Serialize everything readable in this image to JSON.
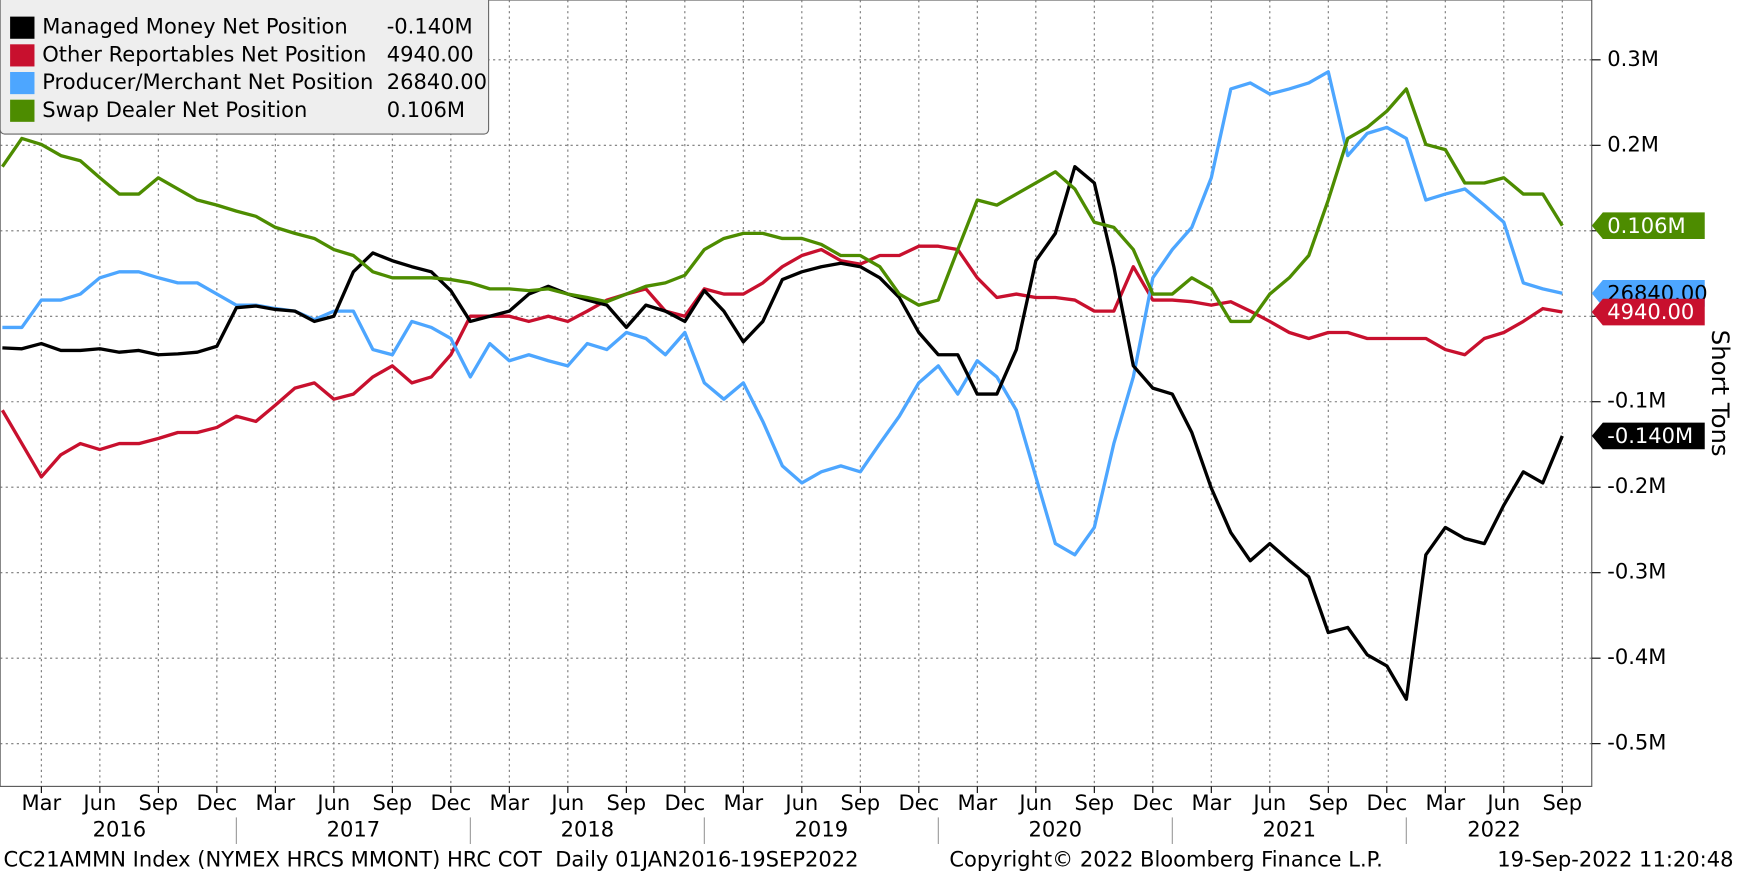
{
  "chart_data": {
    "type": "line",
    "y_axis_label": "Short Tons",
    "footer_left": "CC21AMMN Index (NYMEX HRCS MMONT) HRC COT  Daily 01JAN2016-19SEP2022",
    "footer_center": "Copyright© 2022 Bloomberg Finance L.P.",
    "footer_right": "19-Sep-2022 11:20:48",
    "x": [
      "2016-01",
      "2016-02",
      "2016-03",
      "2016-04",
      "2016-05",
      "2016-06",
      "2016-07",
      "2016-08",
      "2016-09",
      "2016-10",
      "2016-11",
      "2016-12",
      "2017-01",
      "2017-02",
      "2017-03",
      "2017-04",
      "2017-05",
      "2017-06",
      "2017-07",
      "2017-08",
      "2017-09",
      "2017-10",
      "2017-11",
      "2017-12",
      "2018-01",
      "2018-02",
      "2018-03",
      "2018-04",
      "2018-05",
      "2018-06",
      "2018-07",
      "2018-08",
      "2018-09",
      "2018-10",
      "2018-11",
      "2018-12",
      "2019-01",
      "2019-02",
      "2019-03",
      "2019-04",
      "2019-05",
      "2019-06",
      "2019-07",
      "2019-08",
      "2019-09",
      "2019-10",
      "2019-11",
      "2019-12",
      "2020-01",
      "2020-02",
      "2020-03",
      "2020-04",
      "2020-05",
      "2020-06",
      "2020-07",
      "2020-08",
      "2020-09",
      "2020-10",
      "2020-11",
      "2020-12",
      "2021-01",
      "2021-02",
      "2021-03",
      "2021-04",
      "2021-05",
      "2021-06",
      "2021-07",
      "2021-08",
      "2021-09",
      "2021-10",
      "2021-11",
      "2021-12",
      "2022-01",
      "2022-02",
      "2022-03",
      "2022-04",
      "2022-05",
      "2022-06",
      "2022-07",
      "2022-08",
      "2022-09"
    ],
    "xlim": [
      "2016-01",
      "2022-10"
    ],
    "xticks": [
      {
        "value": "2016-03",
        "label": "Mar"
      },
      {
        "value": "2016-06",
        "label": "Jun"
      },
      {
        "value": "2016-09",
        "label": "Sep"
      },
      {
        "value": "2016-12",
        "label": "Dec"
      },
      {
        "value": "2017-03",
        "label": "Mar"
      },
      {
        "value": "2017-06",
        "label": "Jun"
      },
      {
        "value": "2017-09",
        "label": "Sep"
      },
      {
        "value": "2017-12",
        "label": "Dec"
      },
      {
        "value": "2018-03",
        "label": "Mar"
      },
      {
        "value": "2018-06",
        "label": "Jun"
      },
      {
        "value": "2018-09",
        "label": "Sep"
      },
      {
        "value": "2018-12",
        "label": "Dec"
      },
      {
        "value": "2019-03",
        "label": "Mar"
      },
      {
        "value": "2019-06",
        "label": "Jun"
      },
      {
        "value": "2019-09",
        "label": "Sep"
      },
      {
        "value": "2019-12",
        "label": "Dec"
      },
      {
        "value": "2020-03",
        "label": "Mar"
      },
      {
        "value": "2020-06",
        "label": "Jun"
      },
      {
        "value": "2020-09",
        "label": "Sep"
      },
      {
        "value": "2020-12",
        "label": "Dec"
      },
      {
        "value": "2021-03",
        "label": "Mar"
      },
      {
        "value": "2021-06",
        "label": "Jun"
      },
      {
        "value": "2021-09",
        "label": "Sep"
      },
      {
        "value": "2021-12",
        "label": "Dec"
      },
      {
        "value": "2022-03",
        "label": "Mar"
      },
      {
        "value": "2022-06",
        "label": "Jun"
      },
      {
        "value": "2022-09",
        "label": "Sep"
      }
    ],
    "year_labels": [
      "2016",
      "2017",
      "2018",
      "2019",
      "2020",
      "2021",
      "2022"
    ],
    "ylim": [
      -550000,
      370000
    ],
    "yticks": [
      {
        "value": 300000,
        "label": "0.3M"
      },
      {
        "value": 200000,
        "label": "0.2M"
      },
      {
        "value": 100000,
        "label": "0.1M"
      },
      {
        "value": 0,
        "label": "0"
      },
      {
        "value": -100000,
        "label": "-0.1M"
      },
      {
        "value": -200000,
        "label": "-0.2M"
      },
      {
        "value": -300000,
        "label": "-0.3M"
      },
      {
        "value": -400000,
        "label": "-0.4M"
      },
      {
        "value": -500000,
        "label": "-0.5M"
      }
    ],
    "grid": true,
    "legend": "upper left",
    "series": [
      {
        "name": "Managed Money Net Position",
        "color": "#000000",
        "tag_text_color": "#ffffff",
        "last_label": "-0.140M",
        "values": [
          -37000,
          -38000,
          -32000,
          -40000,
          -40000,
          -38000,
          -42000,
          -40000,
          -45000,
          -44000,
          -42000,
          -35000,
          10000,
          12000,
          8000,
          6000,
          -6000,
          0,
          52000,
          74000,
          65000,
          58000,
          52000,
          30000,
          -6000,
          0,
          6000,
          26000,
          35000,
          26000,
          19000,
          13000,
          -13000,
          13000,
          6000,
          -6000,
          30000,
          6000,
          -30000,
          -6000,
          43000,
          52000,
          58000,
          62000,
          58000,
          45000,
          22000,
          -19000,
          -45000,
          -45000,
          -91000,
          -91000,
          -39000,
          65000,
          97000,
          175000,
          156000,
          58000,
          -58000,
          -84000,
          -91000,
          -136000,
          -201000,
          -253000,
          -286000,
          -266000,
          -286000,
          -305000,
          -370000,
          -364000,
          -396000,
          -409000,
          -448000,
          -279000,
          -247000,
          -260000,
          -266000,
          -221000,
          -182000,
          -195000,
          -140000
        ]
      },
      {
        "name": "Other Reportables Net Position",
        "color": "#c8102e",
        "tag_text_color": "#ffffff",
        "last_label": "4940.00",
        "values": [
          -110000,
          -149000,
          -188000,
          -162000,
          -149000,
          -156000,
          -149000,
          -149000,
          -143000,
          -136000,
          -136000,
          -130000,
          -117000,
          -123000,
          -104000,
          -84000,
          -78000,
          -97000,
          -91000,
          -71000,
          -58000,
          -78000,
          -71000,
          -45000,
          0,
          0,
          0,
          -6000,
          0,
          -6000,
          6000,
          19000,
          26000,
          32000,
          6000,
          0,
          32000,
          26000,
          26000,
          39000,
          58000,
          71000,
          78000,
          65000,
          61000,
          71000,
          71000,
          82000,
          82000,
          78000,
          45000,
          22000,
          26000,
          22000,
          22000,
          19000,
          6000,
          6000,
          58000,
          19000,
          19000,
          17000,
          13000,
          17000,
          6000,
          -6000,
          -19000,
          -26000,
          -19000,
          -19000,
          -26000,
          -26000,
          -26000,
          -26000,
          -39000,
          -45000,
          -26000,
          -19000,
          -6000,
          9000,
          4940
        ]
      },
      {
        "name": "Producer/Merchant Net Position",
        "color": "#4da6ff",
        "tag_text_color": "#000000",
        "last_label": "26840.00",
        "values": [
          -13000,
          -13000,
          19000,
          19000,
          26000,
          45000,
          52000,
          52000,
          45000,
          39000,
          39000,
          26000,
          13000,
          13000,
          9000,
          6000,
          -4000,
          6000,
          6000,
          -39000,
          -45000,
          -6000,
          -13000,
          -26000,
          -71000,
          -32000,
          -52000,
          -45000,
          -52000,
          -58000,
          -32000,
          -39000,
          -19000,
          -26000,
          -45000,
          -19000,
          -78000,
          -97000,
          -78000,
          -123000,
          -175000,
          -195000,
          -182000,
          -175000,
          -182000,
          -149000,
          -117000,
          -78000,
          -58000,
          -91000,
          -52000,
          -71000,
          -110000,
          -188000,
          -266000,
          -279000,
          -247000,
          -149000,
          -71000,
          45000,
          78000,
          104000,
          162000,
          266000,
          273000,
          260000,
          266000,
          273000,
          286000,
          188000,
          214000,
          221000,
          208000,
          136000,
          143000,
          149000,
          130000,
          110000,
          39000,
          32000,
          26840
        ]
      },
      {
        "name": "Swap Dealer Net Position",
        "color": "#4d8c00",
        "tag_text_color": "#ffffff",
        "last_label": "0.106M",
        "values": [
          175000,
          208000,
          201000,
          188000,
          182000,
          162000,
          143000,
          143000,
          162000,
          149000,
          136000,
          130000,
          123000,
          117000,
          104000,
          97000,
          91000,
          78000,
          71000,
          52000,
          45000,
          45000,
          45000,
          43000,
          39000,
          32000,
          32000,
          30000,
          32000,
          26000,
          22000,
          17000,
          26000,
          35000,
          39000,
          48000,
          78000,
          91000,
          97000,
          97000,
          91000,
          91000,
          84000,
          71000,
          71000,
          58000,
          26000,
          13000,
          19000,
          78000,
          136000,
          130000,
          143000,
          156000,
          169000,
          149000,
          110000,
          104000,
          78000,
          26000,
          26000,
          45000,
          32000,
          -6000,
          -6000,
          26000,
          45000,
          71000,
          136000,
          208000,
          221000,
          240000,
          266000,
          201000,
          195000,
          156000,
          156000,
          162000,
          143000,
          143000,
          106000
        ]
      }
    ]
  }
}
